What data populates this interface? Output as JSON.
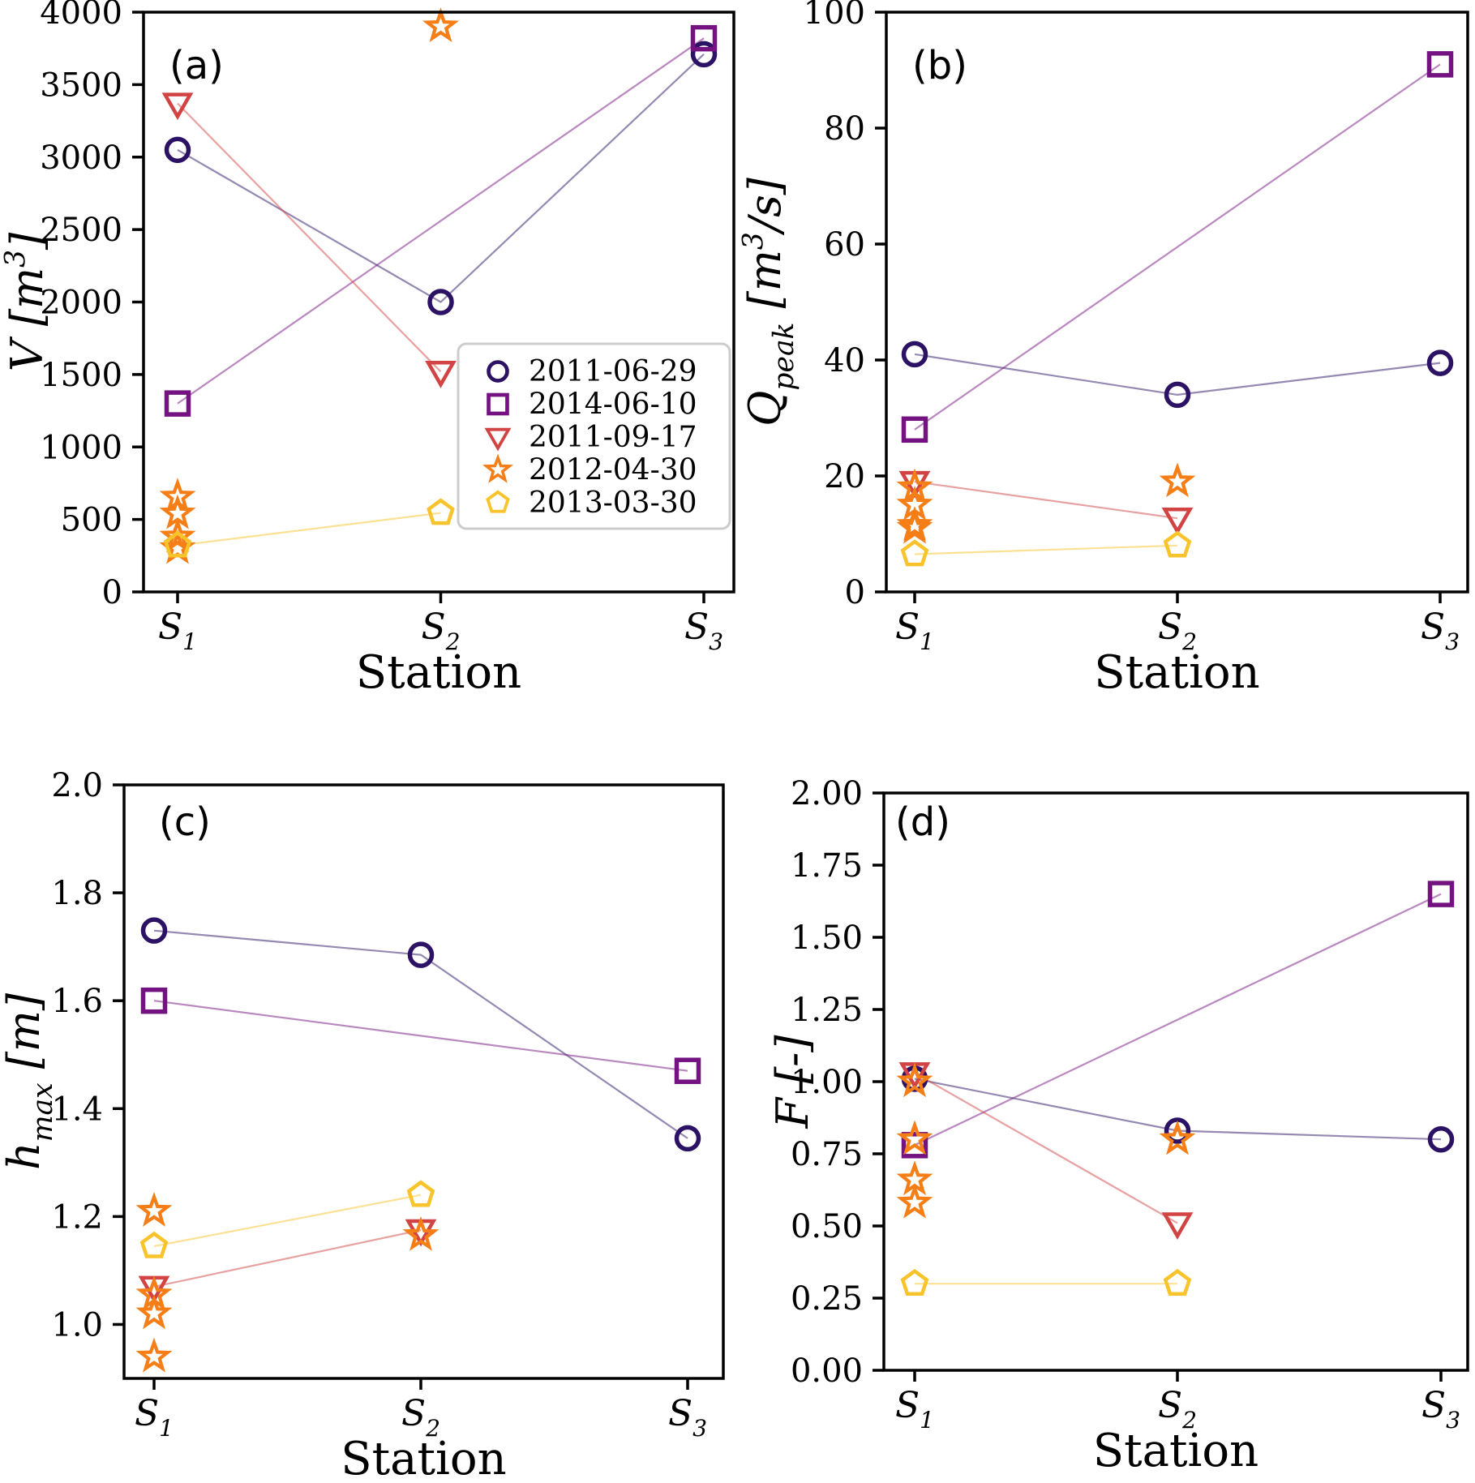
{
  "figure_title": "",
  "legend": {
    "position": "lower-right-of-panel-a",
    "items": [
      "2011-06-29",
      "2014-06-10",
      "2011-09-17",
      "2012-04-30",
      "2013-03-30"
    ]
  },
  "colors": {
    "navy": "#2c1264",
    "purple": "#731280",
    "red": "#d24444",
    "orange": "#f57e17",
    "yellow": "#f9c32b",
    "spine": "#000000",
    "legend_border": "#cccccc"
  },
  "chart_data": [
    {
      "id": "a",
      "type": "line",
      "panel_label": "(a)",
      "xlabel": "Station",
      "ylabel_parts": [
        {
          "t": "V [m"
        },
        {
          "t": "3",
          "pos": "sup"
        },
        {
          "t": "]"
        }
      ],
      "categories": [
        {
          "base": "S",
          "sub": "1"
        },
        {
          "base": "S",
          "sub": "2"
        },
        {
          "base": "S",
          "sub": "3"
        }
      ],
      "ylim": [
        0,
        4000
      ],
      "yticks": [
        0,
        500,
        1000,
        1500,
        2000,
        2500,
        3000,
        3500,
        4000
      ],
      "ytick_labels": [
        "0",
        "500",
        "1000",
        "1500",
        "2000",
        "2500",
        "3000",
        "3500",
        "4000"
      ],
      "legend": true,
      "series": [
        {
          "name": "2011-06-29",
          "marker": "circle",
          "color": "#2c1264",
          "points": [
            [
              0,
              3050
            ],
            [
              1,
              2000
            ],
            [
              2,
              3710
            ]
          ]
        },
        {
          "name": "2014-06-10",
          "marker": "square",
          "color": "#731280",
          "points": [
            [
              0,
              1300
            ],
            [
              2,
              3820
            ]
          ]
        },
        {
          "name": "2011-09-17",
          "marker": "triangle-down",
          "color": "#d24444",
          "points": [
            [
              0,
              3370
            ],
            [
              1,
              1520
            ]
          ]
        },
        {
          "name": "2012-04-30",
          "marker": "star",
          "color": "#f57e17",
          "line": false,
          "points": [
            [
              0,
              655
            ],
            [
              0,
              540
            ],
            [
              0,
              380
            ],
            [
              0,
              300
            ],
            [
              1,
              3900
            ]
          ]
        },
        {
          "name": "2013-03-30",
          "marker": "pentagon",
          "color": "#f9c32b",
          "points": [
            [
              0,
              320
            ],
            [
              1,
              545
            ]
          ]
        }
      ]
    },
    {
      "id": "b",
      "type": "line",
      "panel_label": "(b)",
      "xlabel": "Station",
      "ylabel_parts": [
        {
          "t": "Q"
        },
        {
          "t": "peak",
          "pos": "sub"
        },
        {
          "t": " [m"
        },
        {
          "t": "3",
          "pos": "sup"
        },
        {
          "t": "/s]"
        }
      ],
      "categories": [
        {
          "base": "S",
          "sub": "1"
        },
        {
          "base": "S",
          "sub": "2"
        },
        {
          "base": "S",
          "sub": "3"
        }
      ],
      "ylim": [
        0,
        100
      ],
      "yticks": [
        0,
        20,
        40,
        60,
        80,
        100
      ],
      "ytick_labels": [
        "0",
        "20",
        "40",
        "60",
        "80",
        "100"
      ],
      "legend": false,
      "series": [
        {
          "name": "2011-06-29",
          "marker": "circle",
          "color": "#2c1264",
          "points": [
            [
              0,
              41
            ],
            [
              1,
              34
            ],
            [
              2,
              39.5
            ]
          ]
        },
        {
          "name": "2014-06-10",
          "marker": "square",
          "color": "#731280",
          "points": [
            [
              0,
              28
            ],
            [
              2,
              91
            ]
          ]
        },
        {
          "name": "2011-09-17",
          "marker": "triangle-down",
          "color": "#d24444",
          "points": [
            [
              0,
              19
            ],
            [
              1,
              12.7
            ]
          ]
        },
        {
          "name": "2012-04-30",
          "marker": "star",
          "color": "#f57e17",
          "line": false,
          "points": [
            [
              0,
              18
            ],
            [
              0,
              15
            ],
            [
              0,
              11.5
            ],
            [
              0,
              11
            ],
            [
              1,
              19
            ]
          ]
        },
        {
          "name": "2013-03-30",
          "marker": "pentagon",
          "color": "#f9c32b",
          "points": [
            [
              0,
              6.5
            ],
            [
              1,
              8
            ]
          ]
        }
      ]
    },
    {
      "id": "c",
      "type": "line",
      "panel_label": "(c)",
      "xlabel": "Station",
      "ylabel_parts": [
        {
          "t": "h"
        },
        {
          "t": "max",
          "pos": "sub"
        },
        {
          "t": " [m]"
        }
      ],
      "categories": [
        {
          "base": "S",
          "sub": "1"
        },
        {
          "base": "S",
          "sub": "2"
        },
        {
          "base": "S",
          "sub": "3"
        }
      ],
      "ylim": [
        0.9,
        2.0
      ],
      "yticks": [
        1.0,
        1.2,
        1.4,
        1.6,
        1.8,
        2.0
      ],
      "ytick_labels": [
        "1.0",
        "1.2",
        "1.4",
        "1.6",
        "1.8",
        "2.0"
      ],
      "legend": false,
      "series": [
        {
          "name": "2011-06-29",
          "marker": "circle",
          "color": "#2c1264",
          "points": [
            [
              0,
              1.73
            ],
            [
              1,
              1.685
            ],
            [
              2,
              1.345
            ]
          ]
        },
        {
          "name": "2014-06-10",
          "marker": "square",
          "color": "#731280",
          "points": [
            [
              0,
              1.6
            ],
            [
              2,
              1.47
            ]
          ]
        },
        {
          "name": "2011-09-17",
          "marker": "triangle-down",
          "color": "#d24444",
          "points": [
            [
              0,
              1.07
            ],
            [
              1,
              1.175
            ]
          ]
        },
        {
          "name": "2012-04-30",
          "marker": "star",
          "color": "#f57e17",
          "line": false,
          "points": [
            [
              0,
              1.21
            ],
            [
              0,
              1.055
            ],
            [
              0,
              1.02
            ],
            [
              0,
              0.94
            ],
            [
              1,
              1.165
            ]
          ]
        },
        {
          "name": "2013-03-30",
          "marker": "pentagon",
          "color": "#f9c32b",
          "points": [
            [
              0,
              1.145
            ],
            [
              1,
              1.24
            ]
          ]
        }
      ]
    },
    {
      "id": "d",
      "type": "line",
      "panel_label": "(d)",
      "xlabel": "Station",
      "ylabel_parts": [
        {
          "t": "F [-]"
        }
      ],
      "categories": [
        {
          "base": "S",
          "sub": "1"
        },
        {
          "base": "S",
          "sub": "2"
        },
        {
          "base": "S",
          "sub": "3"
        }
      ],
      "ylim": [
        0.0,
        2.0
      ],
      "yticks": [
        0.0,
        0.25,
        0.5,
        0.75,
        1.0,
        1.25,
        1.5,
        1.75,
        2.0
      ],
      "ytick_labels": [
        "0.00",
        "0.25",
        "0.50",
        "0.75",
        "1.00",
        "1.25",
        "1.50",
        "1.75",
        "2.00"
      ],
      "legend": false,
      "series": [
        {
          "name": "2011-06-29",
          "marker": "circle",
          "color": "#2c1264",
          "points": [
            [
              0,
              1.01
            ],
            [
              1,
              0.83
            ],
            [
              2,
              0.8
            ]
          ]
        },
        {
          "name": "2014-06-10",
          "marker": "square",
          "color": "#731280",
          "points": [
            [
              0,
              0.78
            ],
            [
              2,
              1.65
            ]
          ]
        },
        {
          "name": "2011-09-17",
          "marker": "triangle-down",
          "color": "#d24444",
          "points": [
            [
              0,
              1.03
            ],
            [
              1,
              0.51
            ]
          ]
        },
        {
          "name": "2012-04-30",
          "marker": "star",
          "color": "#f57e17",
          "line": false,
          "points": [
            [
              0,
              1.0
            ],
            [
              0,
              0.8
            ],
            [
              0,
              0.66
            ],
            [
              0,
              0.58
            ],
            [
              1,
              0.8
            ]
          ]
        },
        {
          "name": "2013-03-30",
          "marker": "pentagon",
          "color": "#f9c32b",
          "points": [
            [
              0,
              0.3
            ],
            [
              1,
              0.3
            ]
          ]
        }
      ]
    }
  ]
}
